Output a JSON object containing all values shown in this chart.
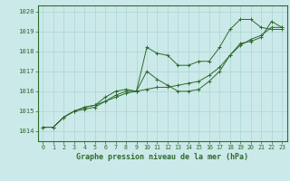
{
  "xlabel": "Graphe pression niveau de la mer (hPa)",
  "bg_color": "#cce9e9",
  "line_color": "#2d6a2d",
  "grid_color": "#aad4d4",
  "ylim": [
    1013.5,
    1020.3
  ],
  "xlim": [
    -0.5,
    23.5
  ],
  "yticks": [
    1014,
    1015,
    1016,
    1017,
    1018,
    1019,
    1020
  ],
  "xticks": [
    0,
    1,
    2,
    3,
    4,
    5,
    6,
    7,
    8,
    9,
    10,
    11,
    12,
    13,
    14,
    15,
    16,
    17,
    18,
    19,
    20,
    21,
    22,
    23
  ],
  "series": [
    [
      1014.2,
      1014.2,
      1014.7,
      1015.0,
      1015.1,
      1015.2,
      1015.5,
      1015.8,
      1016.0,
      1016.0,
      1018.2,
      1017.9,
      1017.8,
      1017.3,
      1017.3,
      1017.5,
      1017.5,
      1018.2,
      1019.1,
      1019.6,
      1019.6,
      1019.2,
      1019.1,
      1019.1
    ],
    [
      1014.2,
      1014.2,
      1014.7,
      1015.0,
      1015.2,
      1015.3,
      1015.7,
      1016.0,
      1016.1,
      1016.0,
      1017.0,
      1016.6,
      1016.3,
      1016.0,
      1016.0,
      1016.1,
      1016.5,
      1017.0,
      1017.8,
      1018.4,
      1018.5,
      1018.7,
      1019.5,
      1019.2
    ],
    [
      1014.2,
      1014.2,
      1014.7,
      1015.0,
      1015.2,
      1015.3,
      1015.5,
      1015.7,
      1015.9,
      1016.0,
      1016.1,
      1016.2,
      1016.2,
      1016.3,
      1016.4,
      1016.5,
      1016.8,
      1017.2,
      1017.8,
      1018.3,
      1018.6,
      1018.8,
      1019.2,
      1019.2
    ]
  ],
  "xlabel_fontsize": 6.0,
  "tick_fontsize": 4.8,
  "ytick_fontsize": 5.2
}
